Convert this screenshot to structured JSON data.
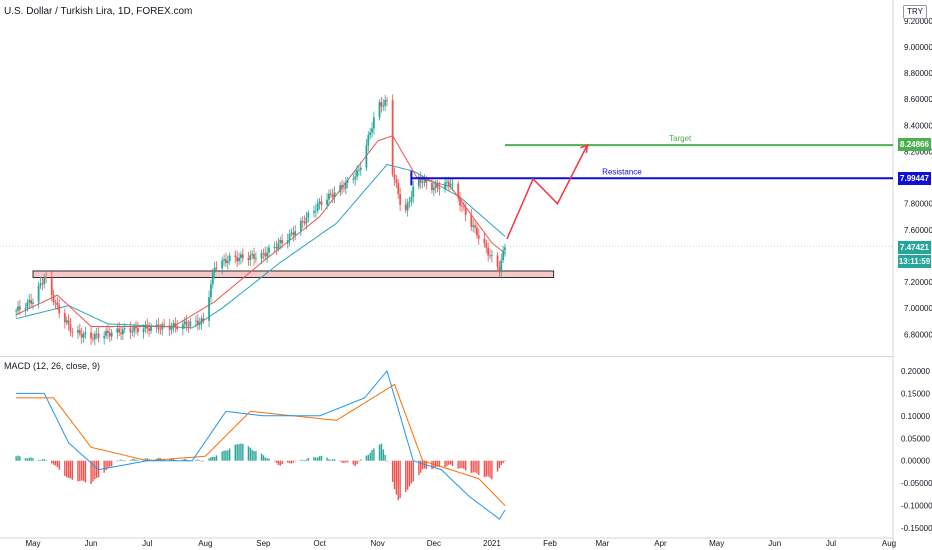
{
  "header": {
    "title": "U.S. Dollar / Turkish Lira, 1D, FOREX.com",
    "currency": "TRY"
  },
  "macd_panel": {
    "title": "MACD (12, 26, close, 9)"
  },
  "tags": {
    "target_price": "8.24866",
    "resistance_price": "7.99447",
    "last_price": "7.47421",
    "countdown": "13:11:59"
  },
  "chart_data": [
    {
      "type": "candlestick",
      "title": "U.S. Dollar / Turkish Lira, 1D, FOREX.com",
      "y_ticks": [
        "9.20000",
        "9.00000",
        "8.80000",
        "8.60000",
        "8.40000",
        "8.20000",
        "7.80000",
        "7.60000",
        "7.20000",
        "7.00000",
        "6.80000"
      ],
      "x_ticks": [
        "May",
        "Jun",
        "Jul",
        "Aug",
        "Sep",
        "Oct",
        "Nov",
        "Dec",
        "2021",
        "Feb",
        "Mar",
        "Apr",
        "May",
        "Jun",
        "Jul",
        "Aug"
      ],
      "ylim": [
        6.68,
        9.26
      ],
      "close_points": [
        [
          "2020-04-22",
          6.98
        ],
        [
          "2020-05-01",
          7.06
        ],
        [
          "2020-05-07",
          7.24
        ],
        [
          "2020-05-14",
          7.0
        ],
        [
          "2020-05-22",
          6.82
        ],
        [
          "2020-06-01",
          6.78
        ],
        [
          "2020-06-15",
          6.82
        ],
        [
          "2020-07-01",
          6.85
        ],
        [
          "2020-07-15",
          6.86
        ],
        [
          "2020-07-31",
          6.9
        ],
        [
          "2020-08-06",
          7.32
        ],
        [
          "2020-08-14",
          7.38
        ],
        [
          "2020-08-31",
          7.4
        ],
        [
          "2020-09-15",
          7.55
        ],
        [
          "2020-10-01",
          7.8
        ],
        [
          "2020-10-15",
          7.95
        ],
        [
          "2020-10-22",
          8.05
        ],
        [
          "2020-11-01",
          8.55
        ],
        [
          "2020-11-06",
          8.58
        ],
        [
          "2020-11-09",
          8.05
        ],
        [
          "2020-11-15",
          7.7
        ],
        [
          "2020-11-22",
          8.0
        ],
        [
          "2020-12-01",
          7.92
        ],
        [
          "2020-12-10",
          7.96
        ],
        [
          "2020-12-18",
          7.72
        ],
        [
          "2020-12-25",
          7.55
        ],
        [
          "2021-01-01",
          7.38
        ],
        [
          "2021-01-05",
          7.3
        ],
        [
          "2021-01-08",
          7.48
        ]
      ],
      "ema_fast": [
        [
          "2020-04-22",
          6.95
        ],
        [
          "2020-05-14",
          7.1
        ],
        [
          "2020-06-01",
          6.86
        ],
        [
          "2020-07-15",
          6.86
        ],
        [
          "2020-08-06",
          7.05
        ],
        [
          "2020-09-01",
          7.36
        ],
        [
          "2020-10-01",
          7.7
        ],
        [
          "2020-11-01",
          8.28
        ],
        [
          "2020-11-09",
          8.32
        ],
        [
          "2020-11-22",
          8.0
        ],
        [
          "2020-12-10",
          7.93
        ],
        [
          "2021-01-01",
          7.5
        ],
        [
          "2021-01-08",
          7.42
        ]
      ],
      "ema_slow": [
        [
          "2020-04-22",
          6.92
        ],
        [
          "2020-05-20",
          7.02
        ],
        [
          "2020-06-10",
          6.88
        ],
        [
          "2020-07-25",
          6.85
        ],
        [
          "2020-08-10",
          7.0
        ],
        [
          "2020-09-10",
          7.35
        ],
        [
          "2020-10-10",
          7.65
        ],
        [
          "2020-11-06",
          8.1
        ],
        [
          "2020-11-20",
          8.05
        ],
        [
          "2020-12-15",
          7.85
        ],
        [
          "2021-01-08",
          7.55
        ]
      ],
      "support_zone": {
        "from": "2020-05-01",
        "to": "2021-02-03",
        "low": 7.235,
        "high": 7.285
      },
      "annotations": [
        {
          "label": "Resistance",
          "price": 7.99447,
          "from": "2020-11-19",
          "color": "#0f0fd7"
        },
        {
          "label": "Target",
          "price": 8.24866,
          "from": "2021-01-08",
          "color": "#4caf50"
        }
      ],
      "projection": [
        [
          "2021-01-09",
          7.53
        ],
        [
          "2021-01-23",
          7.99
        ],
        [
          "2021-02-05",
          7.8
        ],
        [
          "2021-02-21",
          8.25
        ]
      ],
      "last_price": 7.47421,
      "grid": false
    },
    {
      "type": "bar",
      "title": "MACD (12, 26, close, 9)",
      "y_ticks": [
        "0.20000",
        "0.15000",
        "0.10000",
        "0.05000",
        "0.00000",
        "-0.05000",
        "-0.10000",
        "-0.15000"
      ],
      "ylim": [
        -0.17,
        0.22
      ],
      "macd_line": [
        [
          "2020-04-22",
          0.15
        ],
        [
          "2020-05-07",
          0.15
        ],
        [
          "2020-05-20",
          0.04
        ],
        [
          "2020-06-05",
          -0.02
        ],
        [
          "2020-07-01",
          0.0
        ],
        [
          "2020-07-25",
          0.0
        ],
        [
          "2020-08-12",
          0.11
        ],
        [
          "2020-09-01",
          0.1
        ],
        [
          "2020-10-01",
          0.1
        ],
        [
          "2020-10-25",
          0.14
        ],
        [
          "2020-11-06",
          0.2
        ],
        [
          "2020-11-20",
          0.0
        ],
        [
          "2020-12-05",
          -0.02
        ],
        [
          "2020-12-20",
          -0.08
        ],
        [
          "2021-01-05",
          -0.13
        ],
        [
          "2021-01-08",
          -0.11
        ]
      ],
      "signal_line": [
        [
          "2020-04-22",
          0.14
        ],
        [
          "2020-05-12",
          0.14
        ],
        [
          "2020-06-01",
          0.03
        ],
        [
          "2020-07-01",
          0.0
        ],
        [
          "2020-08-01",
          0.01
        ],
        [
          "2020-08-25",
          0.11
        ],
        [
          "2020-10-10",
          0.09
        ],
        [
          "2020-11-10",
          0.17
        ],
        [
          "2020-11-25",
          0.0
        ],
        [
          "2020-12-25",
          -0.04
        ],
        [
          "2021-01-08",
          -0.1
        ]
      ],
      "histogram": [
        [
          "2020-04-22",
          0.01
        ],
        [
          "2020-05-10",
          0.0
        ],
        [
          "2020-05-20",
          -0.04
        ],
        [
          "2020-06-01",
          -0.05
        ],
        [
          "2020-06-15",
          0.0
        ],
        [
          "2020-07-05",
          0.005
        ],
        [
          "2020-08-01",
          0.0
        ],
        [
          "2020-08-20",
          0.04
        ],
        [
          "2020-09-10",
          -0.01
        ],
        [
          "2020-10-01",
          0.01
        ],
        [
          "2020-10-20",
          -0.01
        ],
        [
          "2020-11-03",
          0.04
        ],
        [
          "2020-11-12",
          -0.09
        ],
        [
          "2020-11-25",
          -0.02
        ],
        [
          "2020-12-10",
          -0.01
        ],
        [
          "2021-01-01",
          -0.04
        ],
        [
          "2021-01-08",
          0.0
        ]
      ],
      "grid": false
    }
  ],
  "colors": {
    "up": "#26a69a",
    "down": "#ef5350",
    "ema_fast": "#ef5350",
    "ema_slow": "#26a6b9",
    "resistance": "#0f0fd7",
    "target": "#4caf50",
    "zone_fill": "#f6c8c8",
    "projection": "#f23645",
    "macd": "#2196f3",
    "signal": "#ff6d00",
    "last_price": "#26a69a",
    "countdown": "#26a69a"
  }
}
